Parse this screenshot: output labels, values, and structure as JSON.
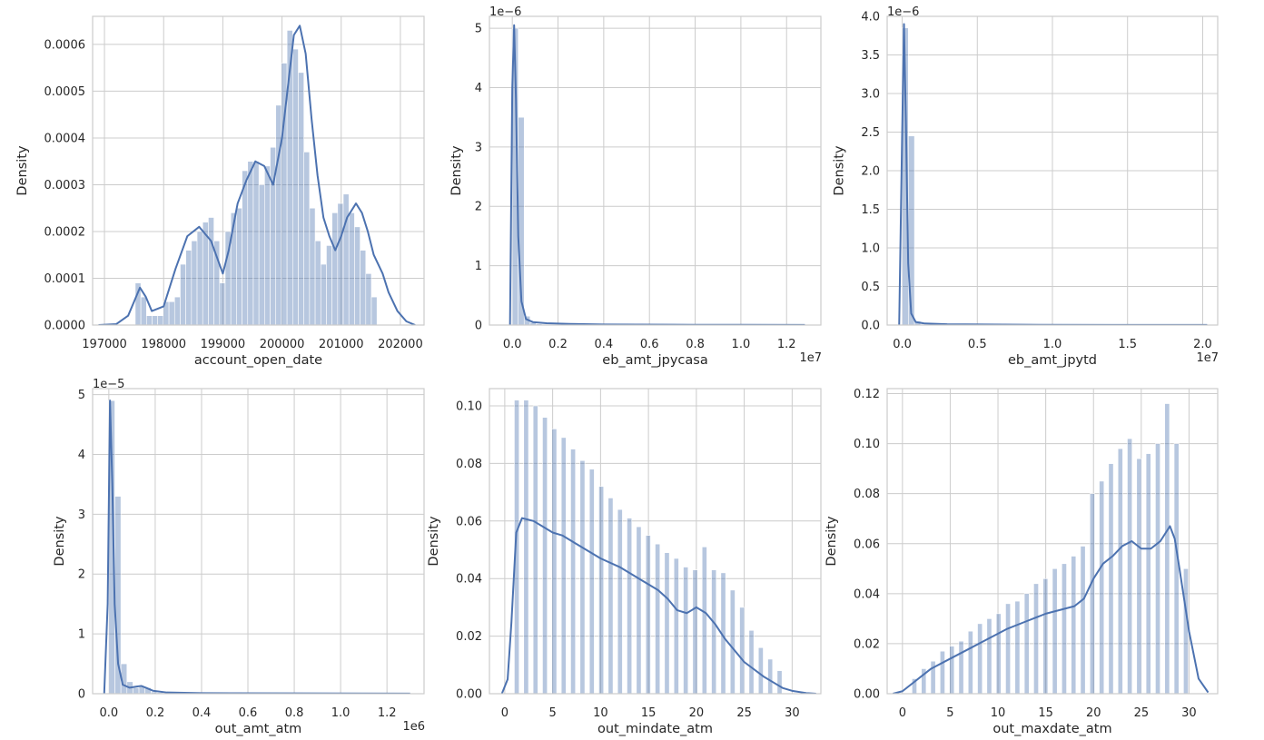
{
  "figure": {
    "type": "histogram-kde-grid",
    "rows": 2,
    "cols": 3
  },
  "colors": {
    "bar": "#4c72b0",
    "line": "#4c72b0",
    "grid": "#cccccc",
    "text": "#262626"
  },
  "chart_data": [
    {
      "type": "histogram",
      "xlabel": "account_open_date",
      "ylabel": "Density",
      "offset_x": "",
      "offset_y": "",
      "xlim": [
        196800,
        202400
      ],
      "ylim": [
        0,
        0.00066
      ],
      "xticks": [
        197000,
        198000,
        199000,
        200000,
        201000,
        202000
      ],
      "xtick_labels": [
        "197000",
        "198000",
        "199000",
        "200000",
        "201000",
        "202000"
      ],
      "yticks": [
        0,
        0.0001,
        0.0002,
        0.0003,
        0.0004,
        0.0005,
        0.0006
      ],
      "ytick_labels": [
        "0.0000",
        "0.0001",
        "0.0002",
        "0.0003",
        "0.0004",
        "0.0005",
        "0.0006"
      ],
      "bins": {
        "start": 197520,
        "width": 95.0,
        "density": [
          9e-05,
          6e-05,
          2e-05,
          2e-05,
          2e-05,
          5e-05,
          5e-05,
          6e-05,
          0.00013,
          0.00016,
          0.00018,
          0.0002,
          0.00022,
          0.00023,
          0.00018,
          9e-05,
          0.0002,
          0.00024,
          0.00025,
          0.00033,
          0.00035,
          0.00035,
          0.0003,
          0.00034,
          0.00038,
          0.00047,
          0.00056,
          0.00063,
          0.00059,
          0.00054,
          0.00037,
          0.00025,
          0.00018,
          0.00013,
          0.00017,
          0.00024,
          0.00026,
          0.00028,
          0.00024,
          0.00021,
          0.00016,
          0.00011,
          6e-05
        ]
      },
      "kde": {
        "x": [
          196900,
          197200,
          197400,
          197500,
          197600,
          197700,
          197800,
          198000,
          198200,
          198400,
          198600,
          198800,
          199000,
          199100,
          199250,
          199400,
          199550,
          199700,
          199850,
          200000,
          200100,
          200200,
          200300,
          200400,
          200500,
          200600,
          200700,
          200800,
          200900,
          201000,
          201100,
          201250,
          201350,
          201450,
          201550,
          201700,
          201800,
          201950,
          202100,
          202250
        ],
        "y": [
          0,
          2e-06,
          2e-05,
          5e-05,
          8e-05,
          6e-05,
          3e-05,
          4e-05,
          0.00012,
          0.00019,
          0.00021,
          0.00018,
          0.00011,
          0.00016,
          0.00026,
          0.00031,
          0.00035,
          0.00034,
          0.0003,
          0.0004,
          0.00051,
          0.00062,
          0.00064,
          0.00058,
          0.00044,
          0.00032,
          0.00023,
          0.00019,
          0.00016,
          0.00019,
          0.00023,
          0.00026,
          0.00024,
          0.0002,
          0.00015,
          0.00011,
          7e-05,
          3e-05,
          8e-06,
          0
        ]
      }
    },
    {
      "type": "histogram",
      "xlabel": "eb_amt_jpycasa",
      "ylabel": "Density",
      "offset_x": "1e7",
      "offset_y": "1e−6",
      "xlim": [
        -1000000,
        13500000
      ],
      "ylim": [
        0,
        5.2e-06
      ],
      "xticks": [
        0,
        2000000,
        4000000,
        6000000,
        8000000,
        10000000,
        12000000
      ],
      "xtick_labels": [
        "0.0",
        "0.2",
        "0.4",
        "0.6",
        "0.8",
        "1.0",
        "1.2"
      ],
      "yticks": [
        0,
        1e-06,
        2e-06,
        3e-06,
        4e-06,
        5e-06
      ],
      "ytick_labels": [
        "0",
        "1",
        "2",
        "3",
        "4",
        "5"
      ],
      "bins": {
        "start": 0,
        "width": 260000,
        "density": [
          5e-06,
          3.5e-06,
          1.5e-07,
          4e-08,
          2e-08,
          1e-08,
          1e-08,
          5e-09,
          5e-09
        ]
      },
      "kde": {
        "x": [
          -100000,
          0,
          80000,
          160000,
          260000,
          400000,
          600000,
          900000,
          1500000,
          2500000,
          4000000,
          7000000,
          10000000,
          12800000
        ],
        "y": [
          0,
          4e-06,
          5.05e-06,
          3.8e-06,
          1.5e-06,
          4e-07,
          1e-07,
          5e-08,
          3e-08,
          2e-08,
          1e-08,
          5e-09,
          3e-09,
          2e-09
        ]
      }
    },
    {
      "type": "histogram",
      "xlabel": "eb_amt_jpytd",
      "ylabel": "Density",
      "offset_x": "1e7",
      "offset_y": "1e−6",
      "xlim": [
        -1000000,
        21000000
      ],
      "ylim": [
        0,
        4e-06
      ],
      "xticks": [
        0,
        5000000,
        10000000,
        15000000,
        20000000
      ],
      "xtick_labels": [
        "0.0",
        "0.5",
        "1.0",
        "1.5",
        "2.0"
      ],
      "yticks": [
        0,
        5e-07,
        1e-06,
        1.5e-06,
        2e-06,
        2.5e-06,
        3e-06,
        3.5e-06,
        4e-06
      ],
      "ytick_labels": [
        "0.0",
        "0.5",
        "1.0",
        "1.5",
        "2.0",
        "2.5",
        "3.0",
        "3.5",
        "4.0"
      ],
      "bins": {
        "start": 0,
        "width": 410000,
        "density": [
          3.85e-06,
          2.45e-06,
          5e-08,
          1e-08,
          5e-09
        ]
      },
      "kde": {
        "x": [
          -200000,
          0,
          120000,
          250000,
          400000,
          600000,
          900000,
          1500000,
          3000000,
          8000000,
          14000000,
          20300000
        ],
        "y": [
          0,
          2.5e-06,
          3.9e-06,
          2.6e-06,
          8e-07,
          1.5e-07,
          4e-08,
          2e-08,
          1e-08,
          4e-09,
          2e-09,
          1e-09
        ]
      }
    },
    {
      "type": "histogram",
      "xlabel": "out_amt_atm",
      "ylabel": "Density",
      "offset_x": "1e6",
      "offset_y": "1e−5",
      "xlim": [
        -70000,
        1360000
      ],
      "ylim": [
        0,
        5.1e-05
      ],
      "xticks": [
        0,
        200000,
        400000,
        600000,
        800000,
        1000000,
        1200000
      ],
      "xtick_labels": [
        "0.0",
        "0.2",
        "0.4",
        "0.6",
        "0.8",
        "1.0",
        "1.2"
      ],
      "yticks": [
        0,
        1e-05,
        2e-05,
        3e-05,
        4e-05,
        5e-05
      ],
      "ytick_labels": [
        "0",
        "1",
        "2",
        "3",
        "4",
        "5"
      ],
      "bins": {
        "start": 0,
        "width": 26000,
        "density": [
          4.9e-05,
          3.3e-05,
          5e-06,
          2e-06,
          1e-06,
          1.2e-06,
          1e-06,
          3e-07,
          2e-07,
          1e-07
        ]
      },
      "kde": {
        "x": [
          -20000,
          -5000,
          5000,
          15000,
          25000,
          40000,
          60000,
          90000,
          120000,
          140000,
          160000,
          190000,
          250000,
          400000,
          800000,
          1300000
        ],
        "y": [
          0,
          1.5e-05,
          4.9e-05,
          3.5e-05,
          1.5e-05,
          5e-06,
          1.5e-06,
          1e-06,
          1.2e-06,
          1.3e-06,
          1e-06,
          5e-07,
          2e-07,
          1e-07,
          5e-08,
          2e-08
        ]
      }
    },
    {
      "type": "histogram",
      "xlabel": "out_mindate_atm",
      "ylabel": "Density",
      "offset_x": "",
      "offset_y": "",
      "xlim": [
        -1.6,
        33.0
      ],
      "ylim": [
        0,
        0.106
      ],
      "xticks": [
        0,
        5,
        10,
        15,
        20,
        25,
        30
      ],
      "xtick_labels": [
        "0",
        "5",
        "10",
        "15",
        "20",
        "25",
        "30"
      ],
      "yticks": [
        0,
        0.02,
        0.04,
        0.06,
        0.08,
        0.1
      ],
      "ytick_labels": [
        "0.00",
        "0.02",
        "0.04",
        "0.06",
        "0.08",
        "0.10"
      ],
      "bins": {
        "start": 1,
        "width": 0.5,
        "spacing": 0.98,
        "density": [
          0.102,
          0.102,
          0.1,
          0.096,
          0.092,
          0.089,
          0.085,
          0.081,
          0.078,
          0.072,
          0.068,
          0.064,
          0.061,
          0.058,
          0.055,
          0.052,
          0.049,
          0.047,
          0.044,
          0.043,
          0.051,
          0.043,
          0.042,
          0.036,
          0.03,
          0.022,
          0.016,
          0.012,
          0.008
        ]
      },
      "kde": {
        "x": [
          -0.3,
          0.3,
          0.7,
          1.2,
          1.8,
          3,
          4,
          5,
          6,
          8,
          10,
          12,
          14,
          16,
          17,
          18,
          19,
          20,
          21,
          22,
          23,
          25,
          27,
          28,
          29,
          30,
          31.5,
          32.5
        ],
        "y": [
          0.0,
          0.005,
          0.025,
          0.056,
          0.061,
          0.06,
          0.058,
          0.056,
          0.055,
          0.051,
          0.047,
          0.044,
          0.04,
          0.036,
          0.033,
          0.029,
          0.028,
          0.03,
          0.028,
          0.024,
          0.019,
          0.011,
          0.006,
          0.004,
          0.002,
          0.001,
          0.0002,
          0.0
        ]
      }
    },
    {
      "type": "histogram",
      "xlabel": "out_maxdate_atm",
      "ylabel": "Density",
      "offset_x": "",
      "offset_y": "",
      "xlim": [
        -1.6,
        33.0
      ],
      "ylim": [
        0,
        0.122
      ],
      "xticks": [
        0,
        5,
        10,
        15,
        20,
        25,
        30
      ],
      "xtick_labels": [
        "0",
        "5",
        "10",
        "15",
        "20",
        "25",
        "30"
      ],
      "yticks": [
        0,
        0.02,
        0.04,
        0.06,
        0.08,
        0.1,
        0.12
      ],
      "ytick_labels": [
        "0.00",
        "0.02",
        "0.04",
        "0.06",
        "0.08",
        "0.10",
        "0.12"
      ],
      "bins": {
        "start": 1.0,
        "width": 0.5,
        "spacing": 0.98,
        "density": [
          0.006,
          0.01,
          0.013,
          0.017,
          0.019,
          0.021,
          0.025,
          0.028,
          0.03,
          0.032,
          0.036,
          0.037,
          0.04,
          0.044,
          0.046,
          0.05,
          0.052,
          0.055,
          0.059,
          0.08,
          0.085,
          0.092,
          0.098,
          0.102,
          0.094,
          0.096,
          0.1,
          0.116,
          0.1,
          0.05
        ]
      },
      "kde": {
        "x": [
          -1.0,
          0,
          1,
          2,
          3,
          5,
          7,
          9,
          11,
          13,
          15,
          17,
          18,
          19,
          20,
          21,
          22,
          23,
          24,
          25,
          26,
          27,
          28,
          28.5,
          29,
          30,
          31,
          32
        ],
        "y": [
          0.0,
          0.001,
          0.004,
          0.007,
          0.01,
          0.014,
          0.018,
          0.022,
          0.026,
          0.029,
          0.032,
          0.034,
          0.035,
          0.038,
          0.046,
          0.052,
          0.055,
          0.059,
          0.061,
          0.058,
          0.058,
          0.061,
          0.067,
          0.062,
          0.05,
          0.025,
          0.006,
          0.0005
        ]
      }
    }
  ]
}
